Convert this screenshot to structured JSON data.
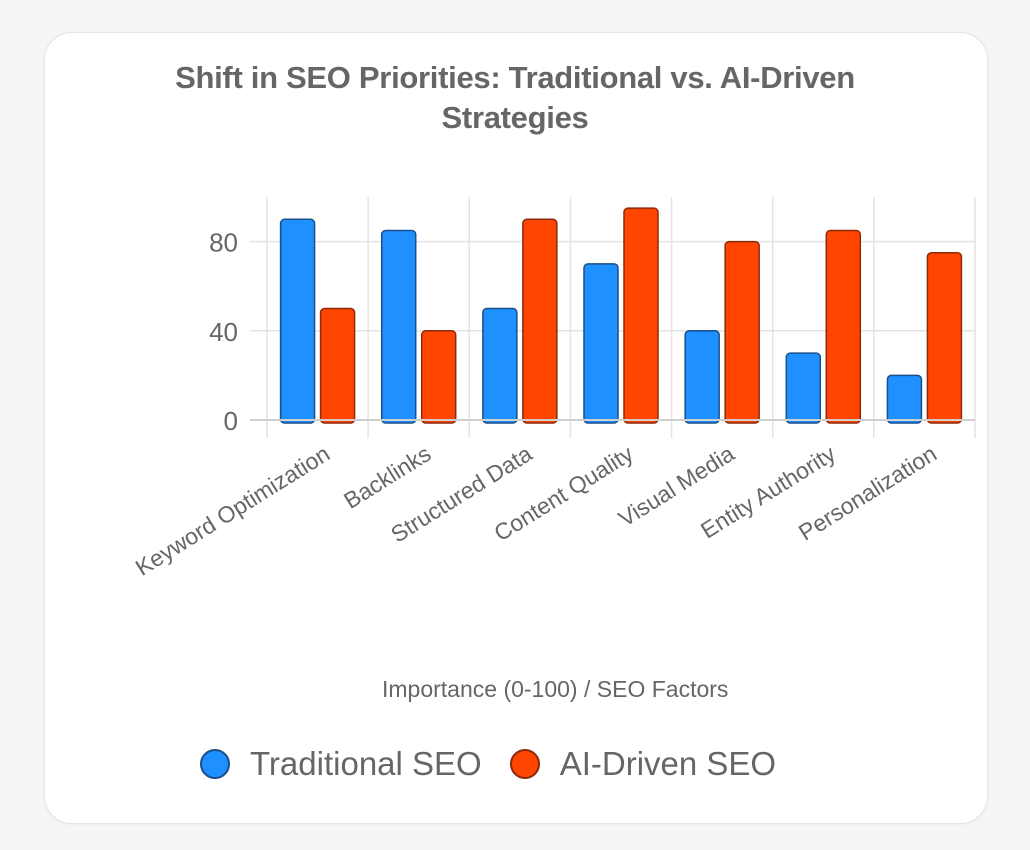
{
  "chart_data": {
    "type": "bar",
    "title": "Shift in SEO Priorities: Traditional vs. AI-Driven Strategies",
    "title_lines": [
      "Shift in SEO Priorities: Traditional vs. AI-Driven",
      "Strategies"
    ],
    "xlabel": "SEO Factors",
    "ylabel": "Importance (0-100)",
    "axis_title": "Importance (0-100) / SEO Factors",
    "categories": [
      "Keyword Optimization",
      "Backlinks",
      "Structured Data",
      "Content Quality",
      "Visual Media",
      "Entity Authority",
      "Personalization"
    ],
    "series": [
      {
        "name": "Traditional SEO",
        "color": "#1e90ff",
        "border": "#1a4f8a",
        "values": [
          90,
          85,
          50,
          70,
          40,
          30,
          20
        ]
      },
      {
        "name": "AI-Driven SEO",
        "color": "#ff4500",
        "border": "#8b2a0a",
        "values": [
          50,
          40,
          90,
          95,
          80,
          85,
          75
        ]
      }
    ],
    "ylim": [
      0,
      100
    ],
    "yticks": [
      0,
      40,
      80
    ],
    "grid": true,
    "legend_position": "bottom"
  },
  "legend": {
    "items": [
      {
        "label": "Traditional SEO",
        "color": "#1e90ff",
        "border": "#1a4f8a"
      },
      {
        "label": "AI-Driven SEO",
        "color": "#ff4500",
        "border": "#8b2a0a"
      }
    ]
  }
}
